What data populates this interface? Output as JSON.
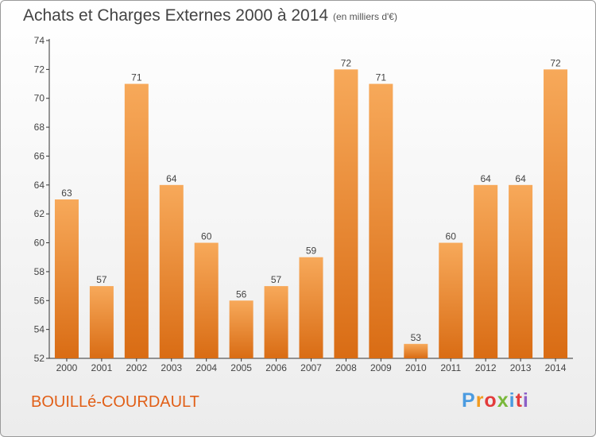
{
  "header": {
    "title": "Achats et Charges Externes 2000 à 2014",
    "unit": "(en milliers d'€)"
  },
  "footer": {
    "commune": "BOUILLé-COURDAULT",
    "logo_letters": [
      "P",
      "r",
      "o",
      "x",
      "i",
      "t",
      "i"
    ]
  },
  "colors": {
    "bar_light": "#f7a95a",
    "bar_dark": "#d96c14",
    "title": "#444444",
    "commune": "#e15f17"
  },
  "chart_data": {
    "type": "bar",
    "title": "Achats et Charges Externes 2000 à 2014",
    "subtitle": "(en milliers d'€)",
    "categories": [
      "2000",
      "2001",
      "2002",
      "2003",
      "2004",
      "2005",
      "2006",
      "2007",
      "2008",
      "2009",
      "2010",
      "2011",
      "2012",
      "2013",
      "2014"
    ],
    "values": [
      63,
      57,
      71,
      64,
      60,
      56,
      57,
      59,
      72,
      71,
      53,
      60,
      64,
      64,
      72
    ],
    "ylim": [
      52,
      74
    ],
    "yticks": [
      52,
      54,
      56,
      58,
      60,
      62,
      64,
      66,
      68,
      70,
      72,
      74
    ],
    "grid": false,
    "xlabel": "",
    "ylabel": ""
  }
}
